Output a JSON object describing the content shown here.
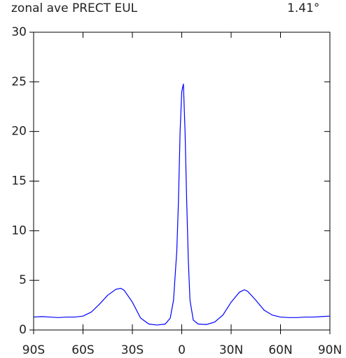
{
  "chart_data": {
    "type": "line",
    "title": "zonal ave PRECT EUL",
    "subtitle": "1.41°",
    "x": [
      -90,
      -85,
      -80,
      -75,
      -70,
      -65,
      -60,
      -55,
      -50,
      -45,
      -40,
      -37,
      -35,
      -30,
      -25,
      -20,
      -15,
      -10,
      -7,
      -5,
      -3,
      -2,
      -1,
      0,
      1,
      2,
      3,
      4,
      5,
      7,
      10,
      15,
      20,
      25,
      30,
      35,
      38,
      40,
      45,
      50,
      55,
      60,
      65,
      70,
      75,
      80,
      85,
      90
    ],
    "series": [
      {
        "color": "#0000ff",
        "values": [
          1.3,
          1.35,
          1.3,
          1.25,
          1.3,
          1.3,
          1.4,
          1.8,
          2.6,
          3.5,
          4.1,
          4.2,
          4.0,
          2.8,
          1.2,
          0.6,
          0.5,
          0.6,
          1.2,
          3,
          8,
          13,
          20,
          24,
          24.8,
          20,
          13,
          7,
          3,
          1,
          0.6,
          0.55,
          0.8,
          1.5,
          2.8,
          3.8,
          4.05,
          3.9,
          3.0,
          2.0,
          1.5,
          1.3,
          1.25,
          1.25,
          1.3,
          1.3,
          1.35,
          1.4
        ]
      }
    ],
    "xlim": [
      -90,
      90
    ],
    "xticks": [
      {
        "value": -90,
        "label": "90S"
      },
      {
        "value": -60,
        "label": "60S"
      },
      {
        "value": -30,
        "label": "30S"
      },
      0,
      {
        "value": 30,
        "label": "30N"
      },
      {
        "value": 60,
        "label": "60N"
      },
      {
        "value": 90,
        "label": "90N"
      }
    ],
    "ylim": [
      0,
      30
    ],
    "yticks": [
      0,
      5,
      10,
      15,
      20,
      25,
      30
    ]
  }
}
